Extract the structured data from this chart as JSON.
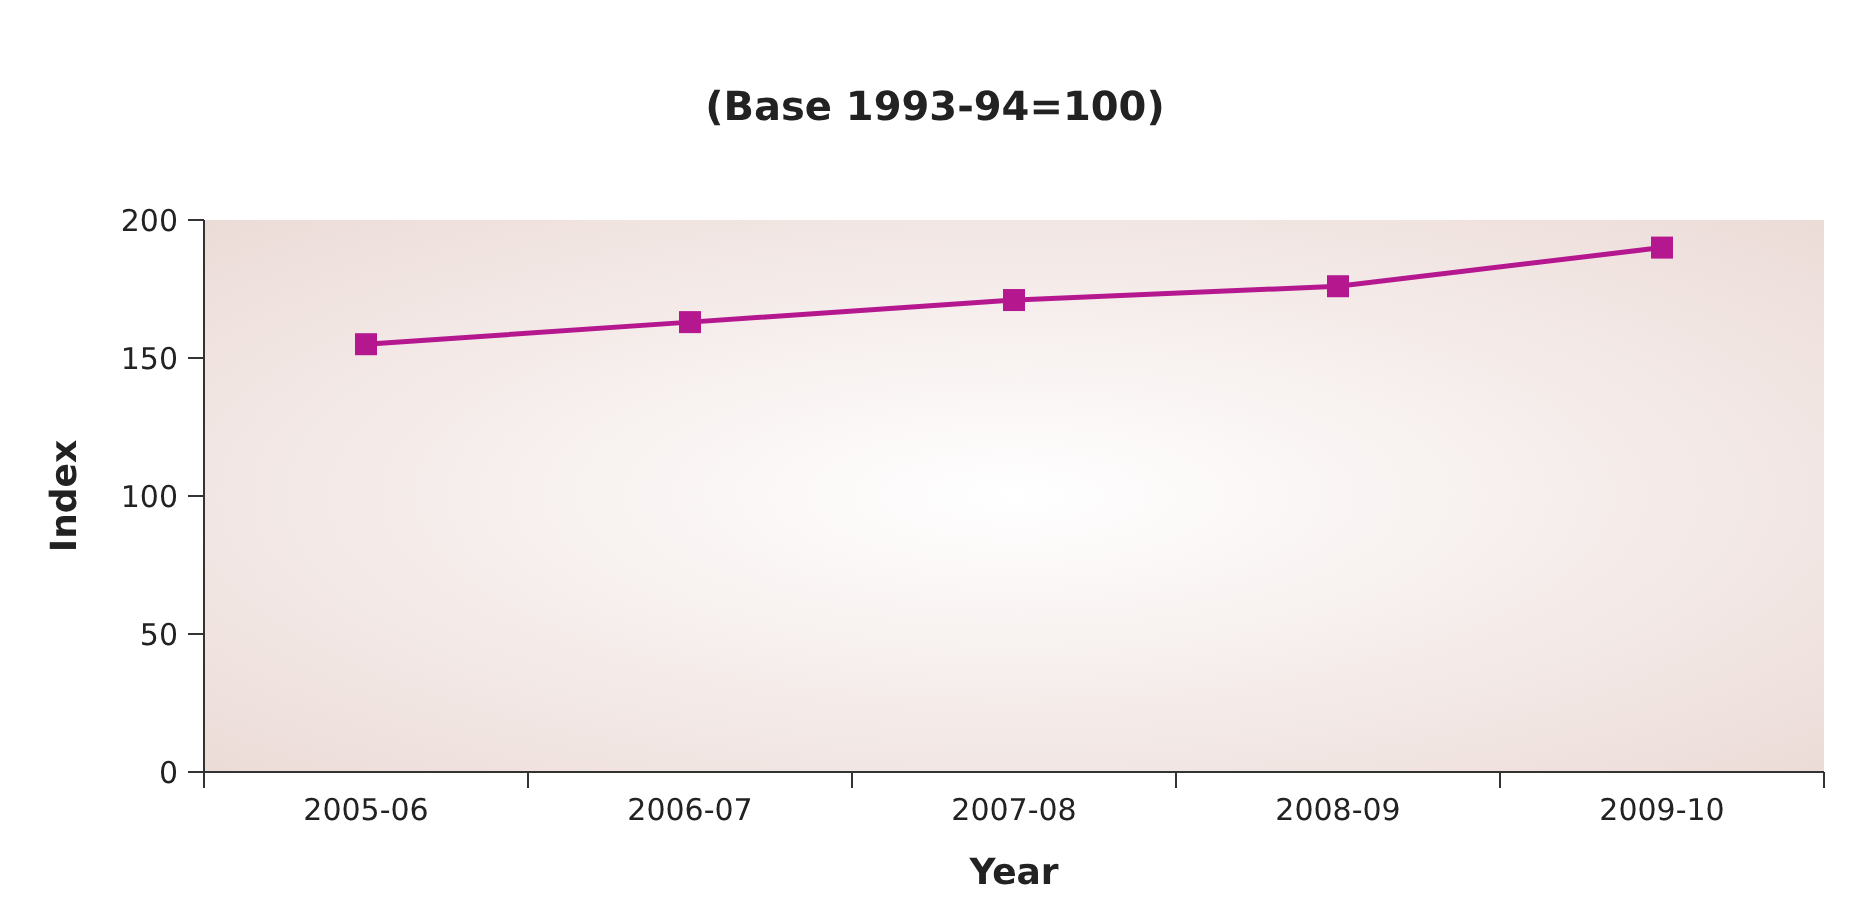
{
  "chart_data": {
    "type": "line",
    "title": "(Base 1993-94=100)",
    "xlabel": "Year",
    "ylabel": "Index",
    "categories": [
      "2005-06",
      "2006-07",
      "2007-08",
      "2008-09",
      "2009-10"
    ],
    "series": [
      {
        "color": "#b5178f",
        "values": [
          155,
          163,
          171,
          176,
          190
        ]
      }
    ],
    "ylim": [
      0,
      200
    ],
    "yticks": [
      0,
      50,
      100,
      150,
      200
    ],
    "grid": false,
    "marker": "square",
    "line_style": "solid"
  }
}
